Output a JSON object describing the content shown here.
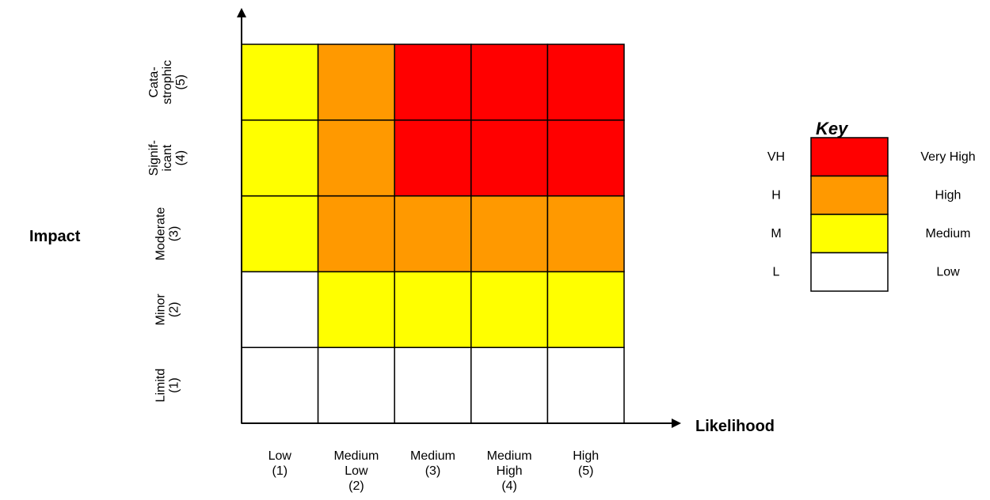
{
  "x_axis": {
    "title": "Likelihood",
    "levels": [
      {
        "lines": [
          "Low",
          "(1)"
        ]
      },
      {
        "lines": [
          "Medium",
          "Low",
          "(2)"
        ]
      },
      {
        "lines": [
          "Medium",
          "(3)"
        ]
      },
      {
        "lines": [
          "Medium",
          "High",
          "(4)"
        ]
      },
      {
        "lines": [
          "High",
          "(5)"
        ]
      }
    ]
  },
  "y_axis": {
    "title": "Impact",
    "levels_bottom_to_top": [
      {
        "lines": [
          "Limitd",
          "(1)"
        ]
      },
      {
        "lines": [
          "Minor",
          "(2)"
        ]
      },
      {
        "lines": [
          "Moderate",
          "(3)"
        ]
      },
      {
        "lines": [
          "Signif-",
          "icant",
          "(4)"
        ]
      },
      {
        "lines": [
          "Cata-",
          "strophic",
          "(5)"
        ]
      }
    ]
  },
  "ratings_bottom_to_top": [
    [
      "L",
      "L",
      "L",
      "L",
      "L"
    ],
    [
      "L",
      "M",
      "M",
      "M",
      "M"
    ],
    [
      "M",
      "H",
      "H",
      "H",
      "H"
    ],
    [
      "M",
      "H",
      "VH",
      "VH",
      "VH"
    ],
    [
      "M",
      "H",
      "VH",
      "VH",
      "VH"
    ]
  ],
  "key": {
    "title": "Key",
    "entries": [
      {
        "code": "VH",
        "label": "Very High",
        "color": "#ff0000"
      },
      {
        "code": "H",
        "label": "High",
        "color": "#ff9900"
      },
      {
        "code": "M",
        "label": "Medium",
        "color": "#ffff00"
      },
      {
        "code": "L",
        "label": "Low",
        "color": "#ffffff"
      }
    ]
  }
}
